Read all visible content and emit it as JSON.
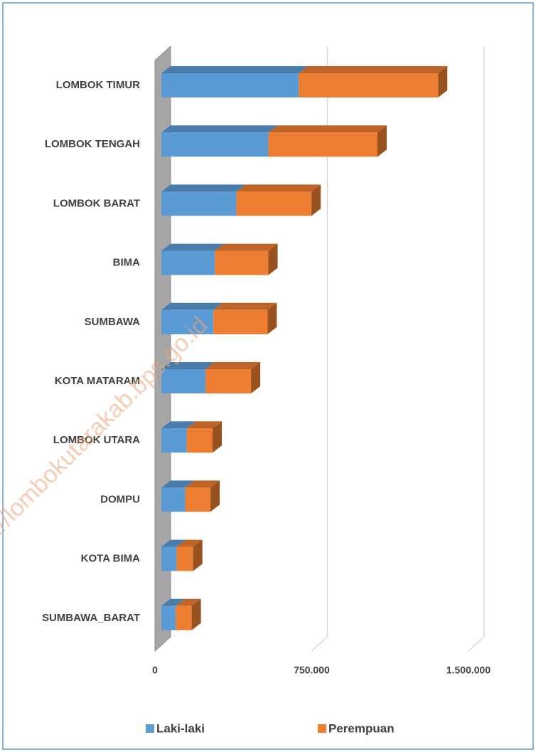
{
  "chart_data": {
    "type": "bar3d_stacked_horizontal",
    "watermark": "https://lombokutarakab.bps.go.id",
    "categories": [
      "LOMBOK TIMUR",
      "LOMBOK TENGAH",
      "LOMBOK BARAT",
      "BIMA",
      "SUMBAWA",
      "KOTA MATARAM",
      "LOMBOK UTARA",
      "DOMPU",
      "KOTA BIMA",
      "SUMBAWA_BARAT"
    ],
    "series": [
      {
        "name": "Laki-laki",
        "color": "#5b9bd5",
        "values": [
          657000,
          512000,
          359000,
          256000,
          249000,
          211000,
          121000,
          114000,
          73000,
          69000
        ]
      },
      {
        "name": "Perempuan",
        "color": "#ed7d31",
        "values": [
          667000,
          522000,
          359000,
          256000,
          259000,
          218000,
          124000,
          121000,
          79000,
          76000
        ]
      }
    ],
    "xlim": [
      0,
      1500000
    ],
    "xticks": [
      0,
      {
        "value": 750000,
        "label": "750.000"
      },
      {
        "value": 1500000,
        "label": "1.500.000"
      }
    ],
    "grid": true,
    "legend": "bottom"
  }
}
